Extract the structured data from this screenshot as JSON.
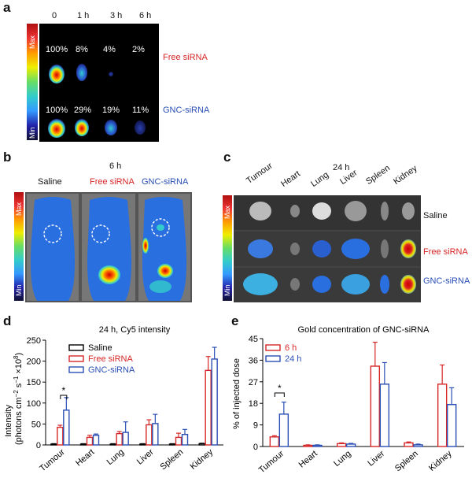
{
  "panels": {
    "a": {
      "letter": "a",
      "timepoints": [
        "0",
        "1 h",
        "3 h",
        "6 h"
      ],
      "free_label": "Free siRNA",
      "gnc_label": "GNC-siRNA",
      "free_percents": [
        "100%",
        "8%",
        "4%",
        "2%"
      ],
      "gnc_percents": [
        "100%",
        "29%",
        "19%",
        "11%"
      ],
      "colorbar": {
        "max": "Max",
        "min": "Min"
      }
    },
    "b": {
      "letter": "b",
      "time": "6 h",
      "groups": [
        "Saline",
        "Free siRNA",
        "GNC-siRNA"
      ],
      "colorbar": {
        "max": "Max",
        "min": "Min"
      }
    },
    "c": {
      "letter": "c",
      "time": "24 h",
      "organs": [
        "Tumour",
        "Heart",
        "Lung",
        "Liver",
        "Spleen",
        "Kidney"
      ],
      "rows": [
        "Saline",
        "Free siRNA",
        "GNC-siRNA"
      ],
      "colorbar": {
        "max": "Max",
        "min": "Min"
      }
    },
    "d": {
      "letter": "d"
    },
    "e": {
      "letter": "e"
    }
  },
  "colors": {
    "saline": "#000000",
    "free": "#d62728",
    "gnc": "#2a4fb5"
  },
  "chart_data": [
    {
      "id": "d",
      "type": "bar",
      "title": "24 h, Cy5 intensity",
      "ylabel": "Intensity",
      "ylabel2": "(photons cm",
      "ylabel_sup1": "−2",
      "ylabel_mid": " s",
      "ylabel_sup2": "−1",
      "ylabel_end": " ×10",
      "ylabel_sup3": "8",
      "ylabel_close": ")",
      "categories": [
        "Tumour",
        "Heart",
        "Lung",
        "Liver",
        "Spleen",
        "Kidney"
      ],
      "ylim": [
        0,
        250
      ],
      "yticks": [
        0,
        50,
        100,
        150,
        200,
        250
      ],
      "series": [
        {
          "name": "Saline",
          "values": [
            2,
            2,
            2,
            2,
            2,
            3
          ],
          "errors": [
            1,
            1,
            1,
            1,
            1,
            1
          ]
        },
        {
          "name": "Free siRNA",
          "values": [
            42,
            18,
            27,
            48,
            18,
            178
          ],
          "errors": [
            5,
            5,
            5,
            12,
            10,
            33
          ]
        },
        {
          "name": "GNC-siRNA",
          "values": [
            83,
            23,
            30,
            51,
            25,
            205
          ],
          "errors": [
            30,
            3,
            25,
            22,
            12,
            28
          ]
        }
      ],
      "significance": {
        "category": "Tumour",
        "label": "*"
      },
      "legend": "top-left"
    },
    {
      "id": "e",
      "type": "bar",
      "title": "Gold concentration of GNC-siRNA",
      "ylabel": "% of injected dose",
      "categories": [
        "Tumour",
        "Heart",
        "Lung",
        "Liver",
        "Spleen",
        "Kidney"
      ],
      "ylim": [
        0,
        45
      ],
      "yticks": [
        0,
        9,
        18,
        27,
        36,
        45
      ],
      "series": [
        {
          "name": "6 h",
          "values": [
            4.0,
            0.5,
            1.2,
            33.5,
            1.5,
            26.0
          ],
          "errors": [
            0.5,
            0.2,
            0.3,
            10,
            0.4,
            8
          ]
        },
        {
          "name": "24 h",
          "values": [
            13.5,
            0.5,
            1.0,
            26.0,
            0.7,
            17.5
          ],
          "errors": [
            5,
            0.2,
            0.3,
            9,
            0.3,
            7
          ]
        }
      ],
      "significance": {
        "category": "Tumour",
        "label": "*"
      },
      "legend": "top-left"
    }
  ]
}
